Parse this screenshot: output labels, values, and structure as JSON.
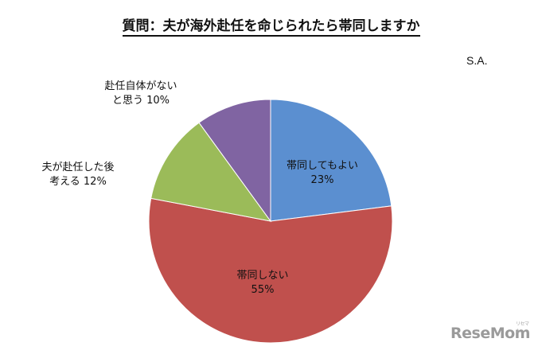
{
  "chart_data": {
    "type": "pie",
    "title": "質問：夫が海外赴任を命じられたら帯同しますか",
    "note": "S.A.",
    "slices": [
      {
        "label_lines": [
          "帯同してもよい"
        ],
        "value": 23,
        "value_label": "23%",
        "color": "#5b8fd0",
        "label_pos": "inside"
      },
      {
        "label_lines": [
          "帯同しない"
        ],
        "value": 55,
        "value_label": "55%",
        "color": "#c0504d",
        "label_pos": "inside"
      },
      {
        "label_lines": [
          "夫が赴任した後",
          "考える"
        ],
        "value": 12,
        "value_label": "12%",
        "color": "#9bbb59",
        "label_pos": "outside"
      },
      {
        "label_lines": [
          "赴任自体がない",
          "と思う"
        ],
        "value": 10,
        "value_label": "10%",
        "color": "#8064a2",
        "label_pos": "outside"
      }
    ]
  },
  "watermark": {
    "text": "ReseMom",
    "small": "リセマム"
  }
}
